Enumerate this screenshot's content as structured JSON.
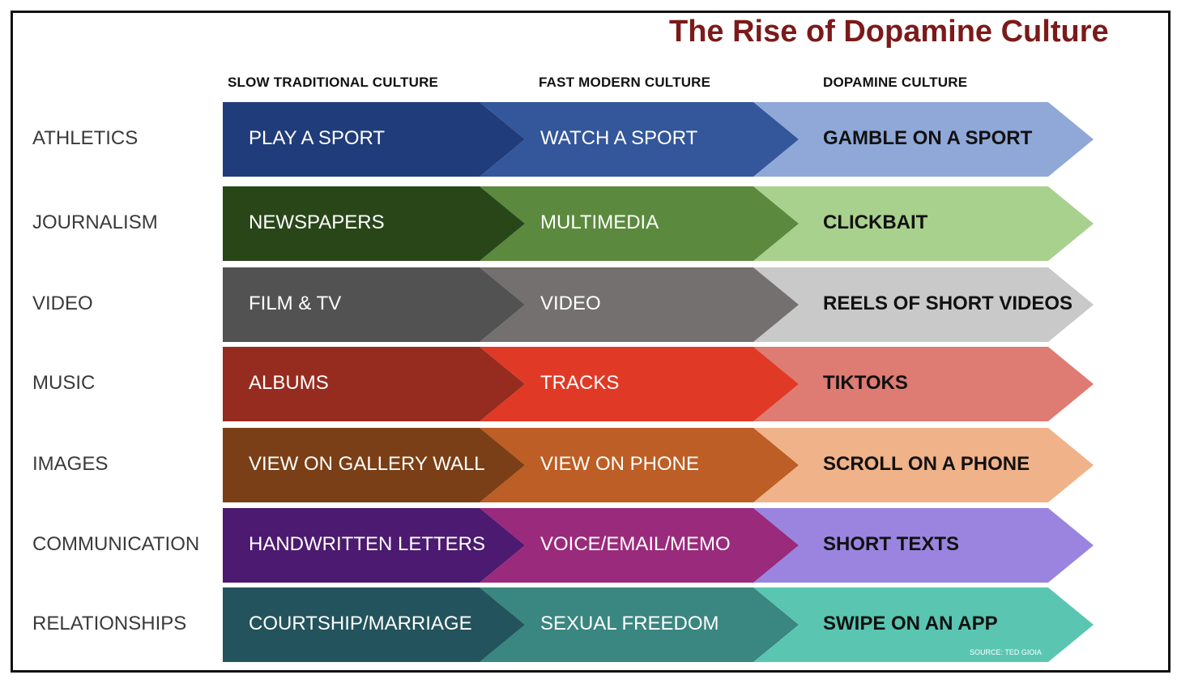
{
  "title": "The Rise of Dopamine Culture",
  "title_color": "#7b1a1a",
  "column_headers": [
    "SLOW TRADITIONAL CULTURE",
    "FAST MODERN CULTURE",
    "DOPAMINE CULTURE"
  ],
  "rows": [
    {
      "label": "ATHLETICS",
      "cells": [
        "PLAY A SPORT",
        "WATCH A SPORT",
        "GAMBLE ON A SPORT"
      ],
      "colors": [
        "#213c7a",
        "#34569b",
        "#8fa8d8"
      ]
    },
    {
      "label": "JOURNALISM",
      "cells": [
        "NEWSPAPERS",
        "MULTIMEDIA",
        "CLICKBAIT"
      ],
      "colors": [
        "#294619",
        "#5b8a3e",
        "#a9d18e"
      ]
    },
    {
      "label": "VIDEO",
      "cells": [
        "FILM &  TV",
        "VIDEO",
        "REELS OF SHORT VIDEOS"
      ],
      "colors": [
        "#525252",
        "#747070",
        "#c9c9c9"
      ]
    },
    {
      "label": "MUSIC",
      "cells": [
        "ALBUMS",
        "TRACKS",
        "TIKTOKS"
      ],
      "colors": [
        "#962c1f",
        "#e03a26",
        "#de7b72"
      ]
    },
    {
      "label": "IMAGES",
      "cells": [
        "VIEW ON GALLERY WALL",
        "VIEW ON PHONE",
        "SCROLL ON A PHONE"
      ],
      "colors": [
        "#7a3f16",
        "#bc5e25",
        "#f0b288"
      ]
    },
    {
      "label": "COMMUNICATION",
      "cells": [
        "HANDWRITTEN LETTERS",
        "VOICE/EMAIL/MEMO",
        "SHORT TEXTS"
      ],
      "colors": [
        "#4c1a70",
        "#9a2a7c",
        "#9a84e0"
      ]
    },
    {
      "label": "RELATIONSHIPS",
      "cells": [
        "COURTSHIP/MARRIAGE",
        "SEXUAL FREEDOM",
        "SWIPE ON AN APP"
      ],
      "colors": [
        "#23535c",
        "#3a8680",
        "#5ac6b2"
      ]
    }
  ],
  "source": "SOURCE: TED GIOIA"
}
